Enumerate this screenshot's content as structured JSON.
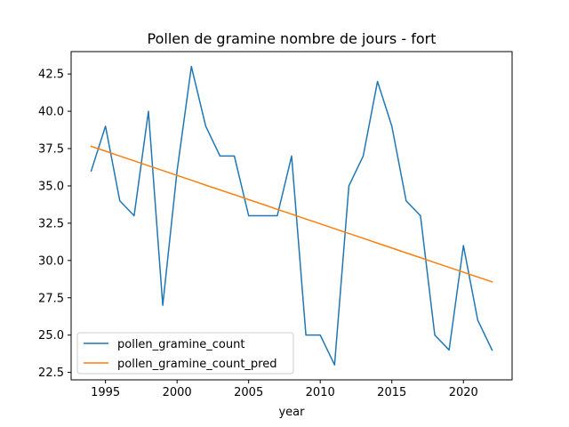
{
  "chart_data": {
    "type": "line",
    "title": "Pollen de gramine nombre de jours - fort",
    "xlabel": "year",
    "ylabel": "",
    "xlim": [
      1992.6,
      2023.4
    ],
    "ylim": [
      22.0,
      44.0
    ],
    "x_ticks": [
      1995,
      2000,
      2005,
      2010,
      2015,
      2020
    ],
    "y_ticks": [
      22.5,
      25.0,
      27.5,
      30.0,
      32.5,
      35.0,
      37.5,
      40.0,
      42.5
    ],
    "y_tick_labels": [
      "22.5",
      "25.0",
      "27.5",
      "30.0",
      "32.5",
      "35.0",
      "37.5",
      "40.0",
      "42.5"
    ],
    "grid": false,
    "legend_position": "lower-left",
    "x": [
      1994,
      1995,
      1996,
      1997,
      1998,
      1999,
      2000,
      2001,
      2002,
      2003,
      2004,
      2005,
      2006,
      2007,
      2008,
      2009,
      2010,
      2011,
      2012,
      2013,
      2014,
      2015,
      2016,
      2017,
      2018,
      2019,
      2020,
      2021,
      2022
    ],
    "series": [
      {
        "name": "pollen_gramine_count",
        "color": "#1f77b4",
        "values": [
          36,
          39,
          34,
          33,
          40,
          27,
          36,
          43,
          39,
          37,
          37,
          33,
          33,
          33,
          37,
          25,
          25,
          23,
          35,
          37,
          42,
          39,
          34,
          33,
          25,
          24,
          31,
          26,
          24
        ]
      },
      {
        "name": "pollen_gramine_count_pred",
        "color": "#ff7f0e",
        "values": [
          37.65,
          37.33,
          37.0,
          36.68,
          36.35,
          36.03,
          35.7,
          35.38,
          35.05,
          34.73,
          34.41,
          34.08,
          33.76,
          33.43,
          33.11,
          32.78,
          32.46,
          32.13,
          31.81,
          31.49,
          31.16,
          30.84,
          30.51,
          30.19,
          29.86,
          29.54,
          29.21,
          28.89,
          28.57
        ]
      }
    ]
  }
}
